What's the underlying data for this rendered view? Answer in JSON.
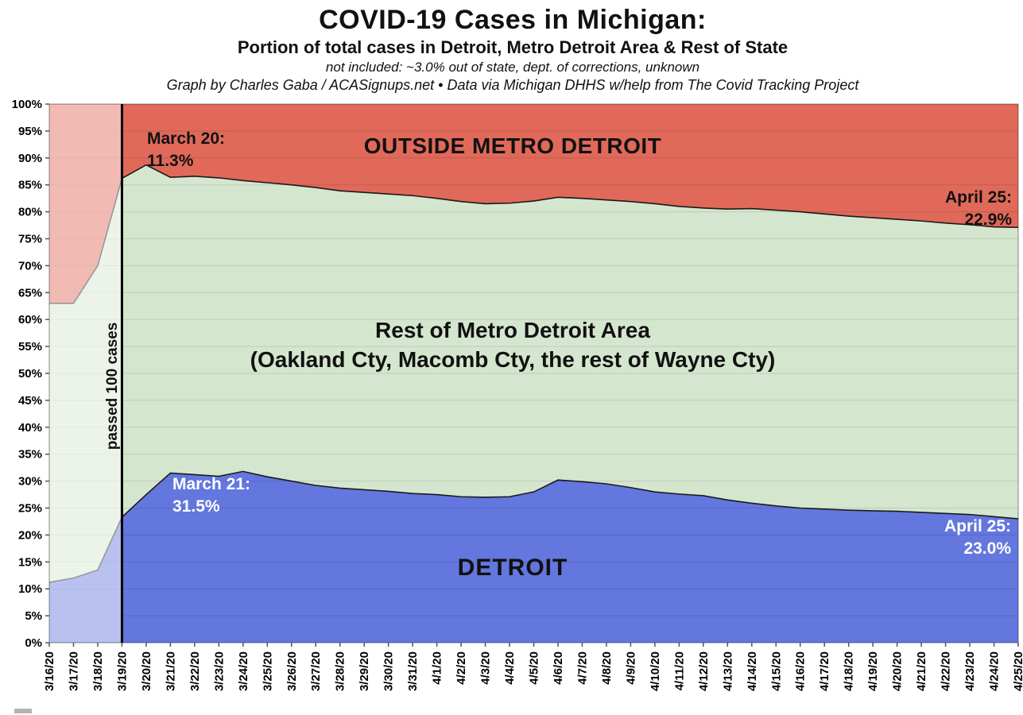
{
  "header": {
    "title": "COVID-19 Cases in Michigan:",
    "subtitle": "Portion of total cases in Detroit, Metro Detroit Area & Rest of State",
    "note": "not included: ~3.0% out of state, dept. of corrections, unknown",
    "credit": "Graph by Charles Gaba / ACASignups.net  •  Data via Michigan DHHS w/help from The Covid Tracking Project"
  },
  "chart_data": {
    "type": "area",
    "stacked": true,
    "title": "COVID-19 Cases in Michigan: Portion of total cases in Detroit, Metro Detroit Area & Rest of State",
    "unit": "%",
    "ylim": [
      0,
      100
    ],
    "ytick_step": 5,
    "grid": true,
    "legend_position": "none",
    "y_tick_labels": [
      "0%",
      "5%",
      "10%",
      "15%",
      "20%",
      "25%",
      "30%",
      "35%",
      "40%",
      "45%",
      "50%",
      "55%",
      "60%",
      "65%",
      "70%",
      "75%",
      "80%",
      "85%",
      "90%",
      "95%",
      "100%"
    ],
    "x": [
      "3/16/20",
      "3/17/20",
      "3/18/20",
      "3/19/20",
      "3/20/20",
      "3/21/20",
      "3/22/20",
      "3/23/20",
      "3/24/20",
      "3/25/20",
      "3/26/20",
      "3/27/20",
      "3/28/20",
      "3/29/20",
      "3/30/20",
      "3/31/20",
      "4/1/20",
      "4/2/20",
      "4/3/20",
      "4/4/20",
      "4/5/20",
      "4/6/20",
      "4/7/20",
      "4/8/20",
      "4/9/20",
      "4/10/20",
      "4/11/20",
      "4/12/20",
      "4/13/20",
      "4/14/20",
      "4/15/20",
      "4/16/20",
      "4/17/20",
      "4/18/20",
      "4/19/20",
      "4/20/20",
      "4/21/20",
      "4/22/20",
      "4/23/20",
      "4/24/20",
      "4/25/20"
    ],
    "series": [
      {
        "name": "Detroit",
        "color": "#6377de",
        "values": [
          11.2,
          12.0,
          13.5,
          23.3,
          27.5,
          31.5,
          31.2,
          30.9,
          31.8,
          30.8,
          30.0,
          29.2,
          28.7,
          28.4,
          28.1,
          27.7,
          27.5,
          27.1,
          27.0,
          27.1,
          28.0,
          30.2,
          29.9,
          29.5,
          28.8,
          28.0,
          27.6,
          27.3,
          26.5,
          25.9,
          25.4,
          25.0,
          24.8,
          24.6,
          24.5,
          24.4,
          24.2,
          24.0,
          23.8,
          23.4,
          23.0
        ]
      },
      {
        "name": "Rest of Metro Detroit Area (Oakland Cty, Macomb Cty, the rest of Wayne Cty)",
        "color": "#d5e6cf",
        "values": [
          51.8,
          51.0,
          56.5,
          62.9,
          61.2,
          54.9,
          55.4,
          55.4,
          54.0,
          54.6,
          55.0,
          55.3,
          55.2,
          55.2,
          55.2,
          55.3,
          55.0,
          54.8,
          54.5,
          54.5,
          54.0,
          52.5,
          52.6,
          52.7,
          53.1,
          53.5,
          53.4,
          53.4,
          54.0,
          54.7,
          54.9,
          55.0,
          54.8,
          54.6,
          54.4,
          54.2,
          54.1,
          53.9,
          53.8,
          53.8,
          54.1
        ]
      },
      {
        "name": "Outside Metro Detroit",
        "color": "#e0695a",
        "values": [
          37.0,
          37.0,
          30.0,
          13.8,
          11.3,
          13.6,
          13.4,
          13.7,
          14.2,
          14.6,
          15.0,
          15.5,
          16.1,
          16.4,
          16.7,
          17.0,
          17.5,
          18.1,
          18.5,
          18.4,
          18.0,
          17.3,
          17.5,
          17.8,
          18.1,
          18.5,
          19.0,
          19.3,
          19.5,
          19.4,
          19.7,
          20.0,
          20.4,
          20.8,
          21.1,
          21.4,
          21.7,
          22.1,
          22.4,
          22.8,
          22.9
        ]
      }
    ],
    "event_line": {
      "x": "3/19/20",
      "label": "passed 100 cases"
    },
    "faded_before": "3/19/20",
    "region_labels": {
      "outside": "OUTSIDE METRO DETROIT",
      "metro_line1": "Rest of Metro Detroit Area",
      "metro_line2": "(Oakland Cty, Macomb Cty, the rest of Wayne Cty)",
      "detroit": "DETROIT"
    },
    "annotations": {
      "march20": {
        "line1": "March 20:",
        "line2": "11.3%"
      },
      "march21": {
        "line1": "March 21:",
        "line2": "31.5%"
      },
      "april25_outside": {
        "line1": "April 25:",
        "line2": "22.9%"
      },
      "april25_detroit": {
        "line1": "April 25:",
        "line2": "23.0%"
      }
    }
  }
}
